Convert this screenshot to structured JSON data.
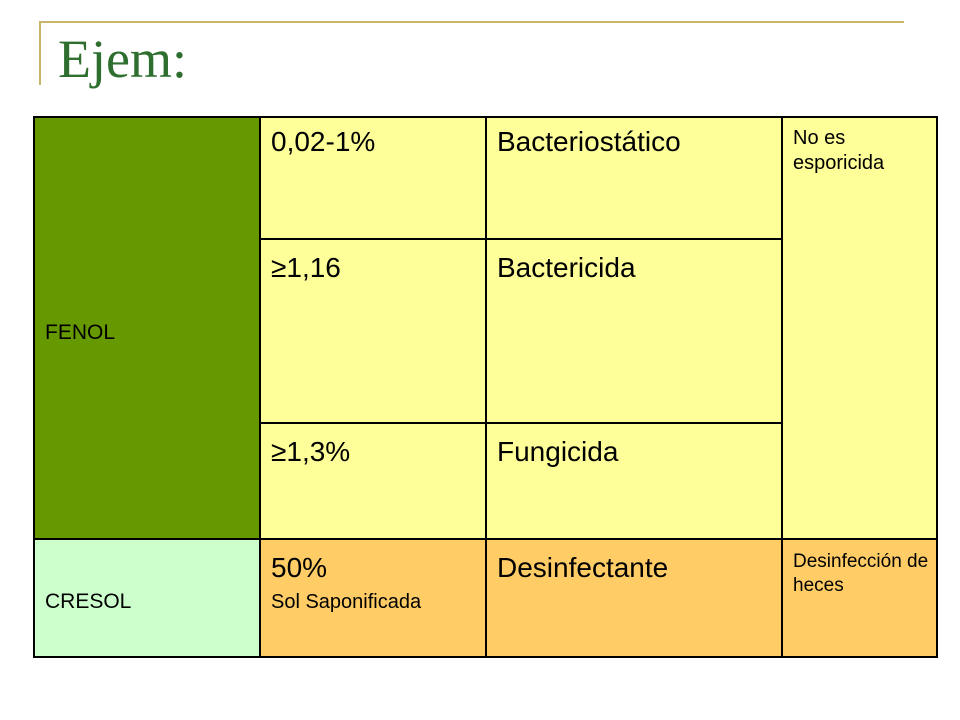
{
  "slide": {
    "title": "Ejem:"
  },
  "table": {
    "fenol": {
      "name": "FENOL",
      "rows": [
        {
          "concentration": "0,02-1%",
          "effect": "Bacteriostático"
        },
        {
          "concentration": "≥1,16",
          "effect": "Bactericida"
        },
        {
          "concentration": "≥1,3%",
          "effect": "Fungicida"
        }
      ],
      "note": "No es esporicida"
    },
    "cresol": {
      "name": "CRESOL",
      "concentration": "50%",
      "concentration_detail": "Sol Saponificada",
      "effect": "Desinfectante",
      "note": "Desinfección de heces"
    }
  },
  "colors": {
    "title": "#2e6e2e",
    "frame": "#c8b46a",
    "fenol_cell": "#669900",
    "cresol_cell": "#ccffcc",
    "fenol_rows": "#ffff99",
    "cresol_row": "#ffcc66"
  }
}
